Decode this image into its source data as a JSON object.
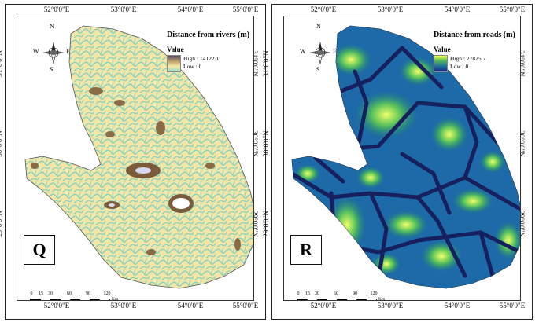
{
  "axis_ticks": {
    "top": [
      "52°0'0\"E",
      "53°0'0\"E",
      "54°0'0\"E",
      "55°0'0\"E"
    ],
    "bottom": [
      "52°0'0\"E",
      "53°0'0\"E",
      "54°0'0\"E",
      "55°0'0\"E"
    ],
    "left": [
      "31°0'0\"N",
      "30°0'0\"N",
      "29°0'0\"N"
    ],
    "right": [
      "31°0'0\"N",
      "30°0'0\"N",
      "29°0'0\"N"
    ]
  },
  "compass": {
    "n": "N",
    "s": "S",
    "e": "E",
    "w": "W"
  },
  "scalebar": {
    "ticks": [
      "0",
      "15",
      "30",
      "60",
      "90",
      "120"
    ],
    "unit": "Km"
  },
  "panels": [
    {
      "id": "Q",
      "label": "Q",
      "legend_title": "Distance from rivers (m)",
      "value_heading": "Value",
      "high": "High : 14122.1",
      "low": "Low : 0",
      "colors": {
        "high": "#6d5433",
        "mid": "#f5e8a8",
        "low": "#9cd8c6"
      }
    },
    {
      "id": "R",
      "label": "R",
      "legend_title": "Distance from roads (m)",
      "value_heading": "Value",
      "high": "High : 27825.7",
      "low": "Low : 0",
      "colors": {
        "high": "#f0ff4a",
        "mid": "#27a86a",
        "low": "#1a237e"
      }
    }
  ]
}
